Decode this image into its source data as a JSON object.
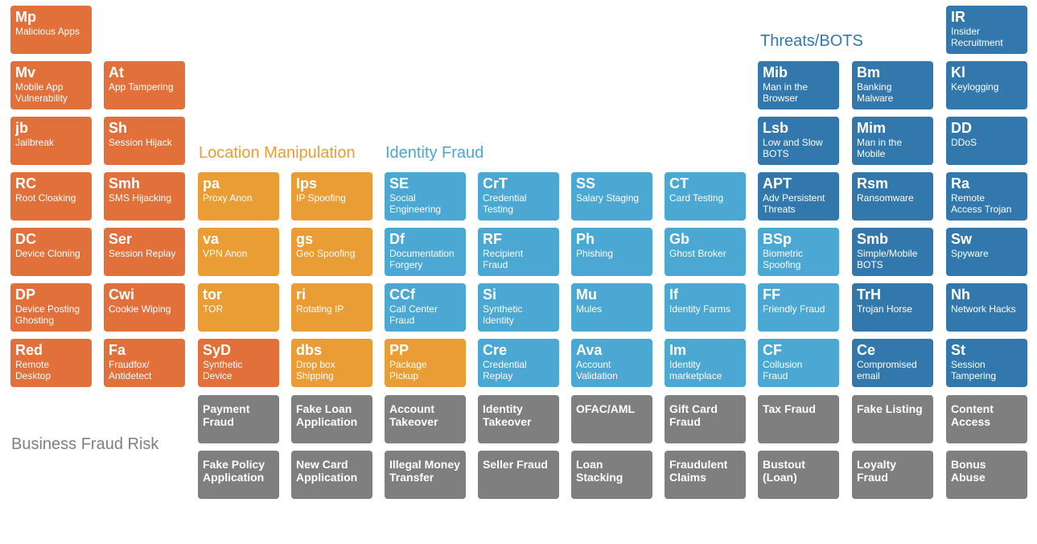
{
  "categories": {
    "location": "Location Manipulation",
    "identity": "Identity Fraud",
    "threats": "Threats/BOTS",
    "business": "Business Fraud Risk"
  },
  "colors": {
    "device": "#e2703b",
    "location": "#eb9d35",
    "identity": "#4aa8d3",
    "threats": "#3278ad",
    "business": "#7f7f7f"
  },
  "col1": [
    {
      "sym": "Mp",
      "name": "Malicious Apps"
    },
    {
      "sym": "Mv",
      "name": "Mobile App\nVulnerability"
    },
    {
      "sym": "jb",
      "name": "Jailbreak"
    },
    {
      "sym": "RC",
      "name": "Root Cloaking"
    },
    {
      "sym": "DC",
      "name": "Device Cloning"
    },
    {
      "sym": "DP",
      "name": "Device Posting\nGhosting"
    },
    {
      "sym": "Red",
      "name": "Remote\nDesktop"
    }
  ],
  "col2": [
    {
      "sym": "At",
      "name": "App Tampering"
    },
    {
      "sym": "Sh",
      "name": "Session Hijack"
    },
    {
      "sym": "Smh",
      "name": "SMS Hijacking"
    },
    {
      "sym": "Ser",
      "name": "Session Replay"
    },
    {
      "sym": "Cwi",
      "name": "Cookie Wiping"
    },
    {
      "sym": "Fa",
      "name": "Fraudfox/\nAntidetect"
    }
  ],
  "col3": [
    {
      "sym": "pa",
      "name": "Proxy Anon"
    },
    {
      "sym": "va",
      "name": "VPN Anon"
    },
    {
      "sym": "tor",
      "name": "TOR"
    },
    {
      "sym": "SyD",
      "name": "Synthetic\nDevice"
    }
  ],
  "col4": [
    {
      "sym": "Ips",
      "name": "IP Spoofing"
    },
    {
      "sym": "gs",
      "name": "Geo Spoofing"
    },
    {
      "sym": "ri",
      "name": "Rotating IP"
    },
    {
      "sym": "dbs",
      "name": "Drop box\nShipping"
    }
  ],
  "col5": [
    {
      "sym": "SE",
      "name": "Social\nEngineering"
    },
    {
      "sym": "Df",
      "name": "Documentation\nForgery"
    },
    {
      "sym": "CCf",
      "name": "Call Center\nFraud"
    },
    {
      "sym": "PP",
      "name": "Package\nPickup"
    }
  ],
  "col6": [
    {
      "sym": "CrT",
      "name": "Credential\nTesting"
    },
    {
      "sym": "RF",
      "name": "Recipient\nFraud"
    },
    {
      "sym": "Si",
      "name": "Synthetic\nIdentity"
    },
    {
      "sym": "Cre",
      "name": "Credential\nReplay"
    }
  ],
  "col7": [
    {
      "sym": "SS",
      "name": "Salary Staging"
    },
    {
      "sym": "Ph",
      "name": "Phishing"
    },
    {
      "sym": "Mu",
      "name": "Mules"
    },
    {
      "sym": "Ava",
      "name": "Account\nValidation"
    }
  ],
  "col8": [
    {
      "sym": "CT",
      "name": "Card Testing"
    },
    {
      "sym": "Gb",
      "name": "Ghost Broker"
    },
    {
      "sym": "If",
      "name": "Identity Farms"
    },
    {
      "sym": "Im",
      "name": "Identity\nmarketplace"
    }
  ],
  "col9": [
    {
      "sym": "Mib",
      "name": "Man in the\nBrowser"
    },
    {
      "sym": "Lsb",
      "name": "Low and Slow\nBOTS"
    },
    {
      "sym": "APT",
      "name": "Adv Persistent\nThreats"
    },
    {
      "sym": "BSp",
      "name": "Biometric\nSpoofing"
    },
    {
      "sym": "FF",
      "name": "Friendly Fraud"
    },
    {
      "sym": "CF",
      "name": "Collusion\nFraud"
    }
  ],
  "col10": [
    {
      "sym": "Bm",
      "name": "Banking\nMalware"
    },
    {
      "sym": "Mim",
      "name": "Man in the\nMobile"
    },
    {
      "sym": "Rsm",
      "name": "Ransomware"
    },
    {
      "sym": "Smb",
      "name": "Simple/Mobile\nBOTS"
    },
    {
      "sym": "TrH",
      "name": "Trojan Horse"
    },
    {
      "sym": "Ce",
      "name": "Compromised\nemail"
    }
  ],
  "col11": [
    {
      "sym": "IR",
      "name": "Insider\nRecruitment"
    },
    {
      "sym": "Kl",
      "name": "Keylogging"
    },
    {
      "sym": "DD",
      "name": "DDoS"
    },
    {
      "sym": "Ra",
      "name": "Remote\nAccess Trojan"
    },
    {
      "sym": "Sw",
      "name": "Spyware"
    },
    {
      "sym": "Nh",
      "name": "Network Hacks"
    },
    {
      "sym": "St",
      "name": "Session\nTampering"
    }
  ],
  "business_row1": [
    "Payment\nFraud",
    "Fake Loan\nApplication",
    "Account\nTakeover",
    "Identity\nTakeover",
    "OFAC/AML",
    "Gift Card\nFraud",
    "Tax Fraud",
    "Fake Listing",
    "Content\nAccess"
  ],
  "business_row2": [
    "Fake Policy\nApplication",
    "New Card\nApplication",
    "Illegal Money\nTransfer",
    "Seller Fraud",
    "Loan\nStacking",
    "Fraudulent\nClaims",
    "Bustout\n(Loan)",
    "Loyalty\nFraud",
    "Bonus Abuse"
  ]
}
